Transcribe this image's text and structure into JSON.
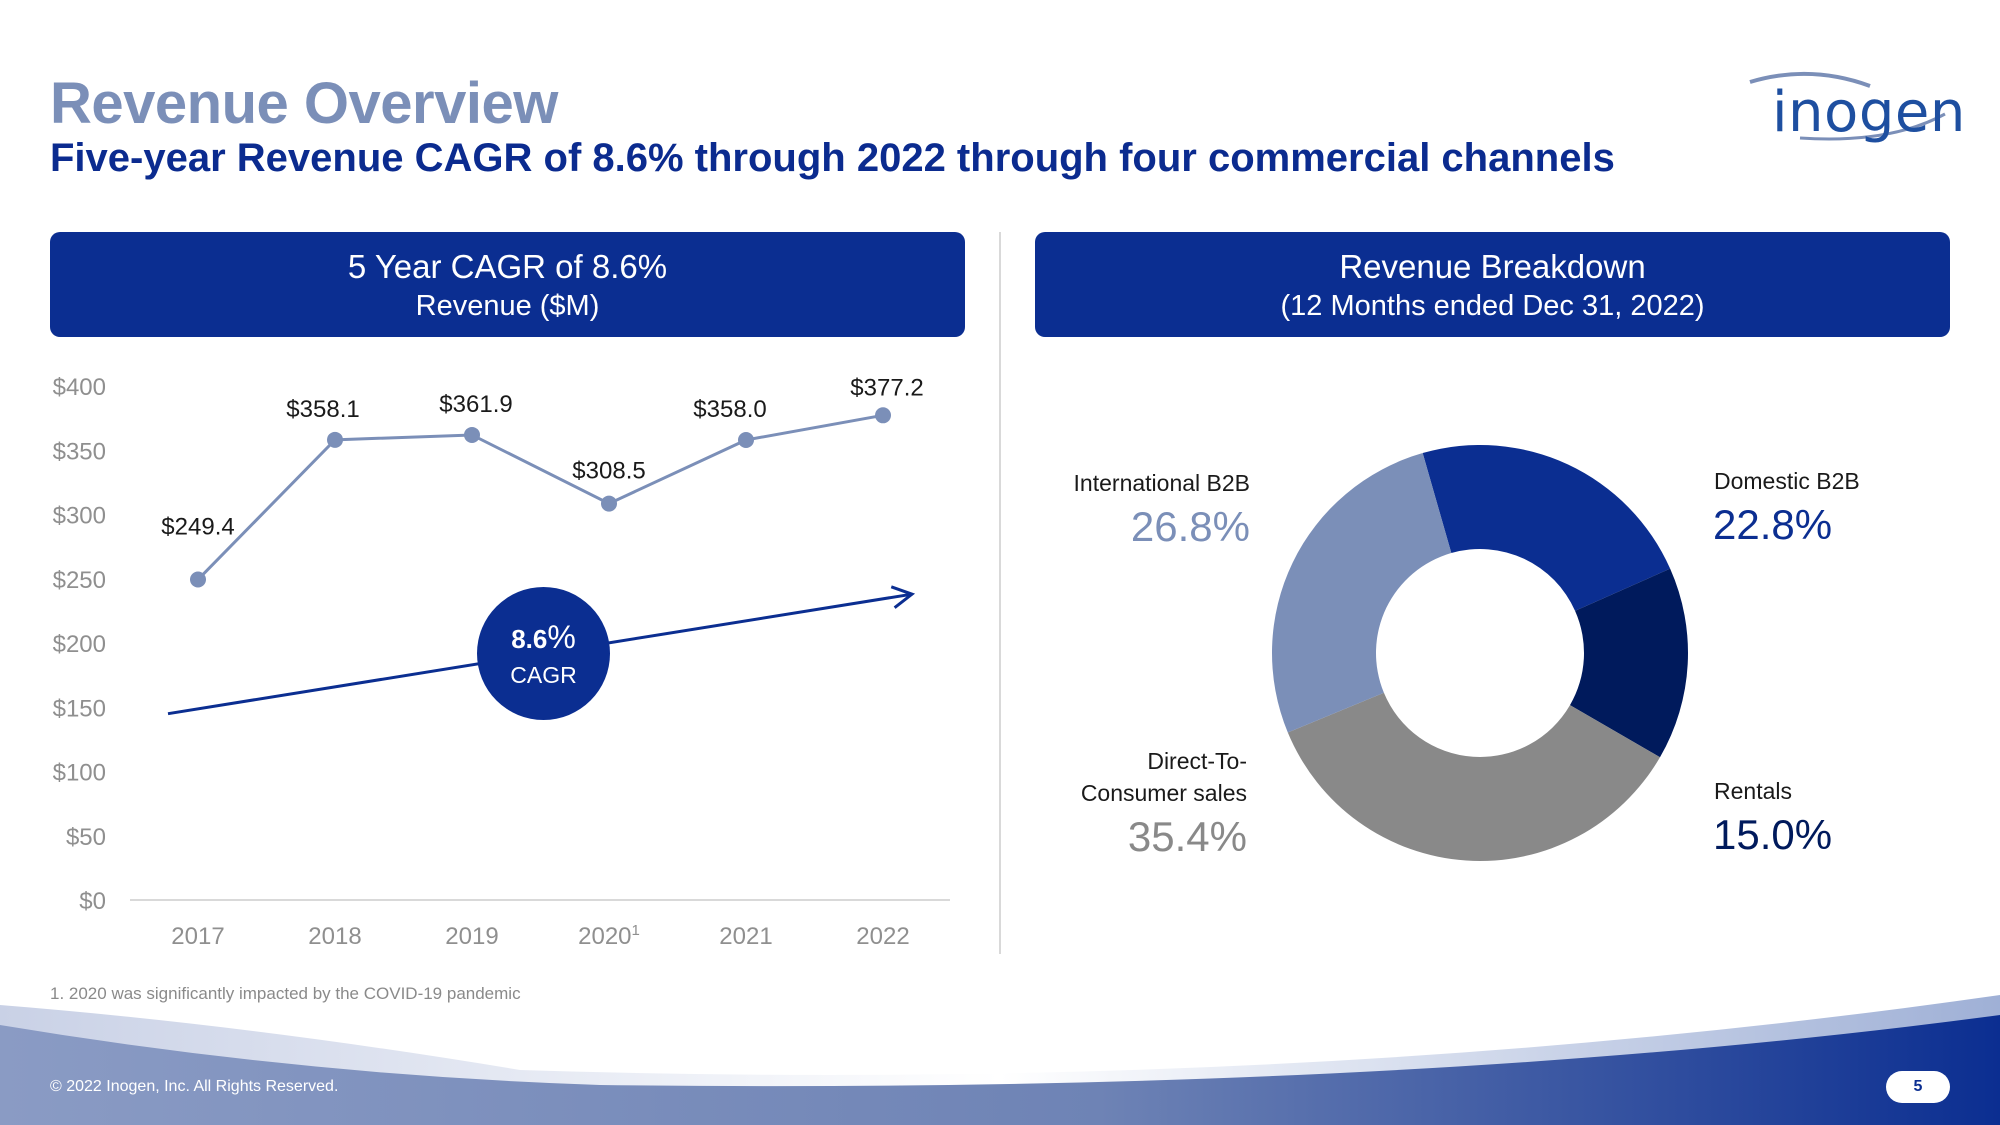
{
  "header": {
    "title": "Revenue Overview",
    "subtitle": "Five-year Revenue CAGR of 8.6% through 2022 through four commercial channels",
    "logo_text": "inogen"
  },
  "left_panel": {
    "title": "5 Year CAGR of 8.6%",
    "subtitle": "Revenue ($M)"
  },
  "right_panel": {
    "title": "Revenue Breakdown",
    "subtitle": "(12 Months ended Dec 31, 2022)"
  },
  "cagr_badge": {
    "value": "8.6",
    "unit": "%",
    "label": "CAGR"
  },
  "chart_data": [
    {
      "type": "line",
      "title": "5 Year CAGR of 8.6%",
      "ylabel": "Revenue ($M)",
      "categories": [
        "2017",
        "2018",
        "2019",
        "2020",
        "2021",
        "2022"
      ],
      "category_footnote_marks": [
        "",
        "",
        "",
        "1",
        "",
        ""
      ],
      "values": [
        249.4,
        358.1,
        361.9,
        308.5,
        358.0,
        377.2
      ],
      "data_labels": [
        "$249.4",
        "$358.1",
        "$361.9",
        "$308.5",
        "$358.0",
        "$377.2"
      ],
      "ylim": [
        0,
        400
      ],
      "yticks": [
        0,
        50,
        100,
        150,
        200,
        250,
        300,
        350,
        400
      ],
      "ytick_labels": [
        "$0",
        "$50",
        "$100",
        "$150",
        "$200",
        "$250",
        "$300",
        "$350",
        "$400"
      ],
      "trend_line": {
        "start": 145,
        "end": 238
      },
      "series_color": "#7b8fb8",
      "trend_color": "#0b2e91",
      "grid": false
    },
    {
      "type": "pie",
      "title": "Revenue Breakdown",
      "subtitle": "(12 Months ended Dec 31, 2022)",
      "slices": [
        {
          "label": "Domestic B2B",
          "value": 22.8,
          "display": "22.8%",
          "color": "#0b2e91"
        },
        {
          "label": "Rentals",
          "value": 15.0,
          "display": "15.0%",
          "color": "#001a5c"
        },
        {
          "label": "Direct-To-Consumer sales",
          "value": 35.4,
          "display": "35.4%",
          "color": "#898989"
        },
        {
          "label": "International B2B",
          "value": 26.8,
          "display": "26.8%",
          "color": "#7b8fb8"
        }
      ],
      "label_lines": {
        "dtc": [
          "Direct-To-",
          "Consumer sales"
        ]
      }
    }
  ],
  "footnote": "1.  2020 was significantly impacted by the COVID-19 pandemic",
  "footer": {
    "copyright": "© 2022 Inogen, Inc. All Rights Reserved.",
    "page_number": "5"
  }
}
